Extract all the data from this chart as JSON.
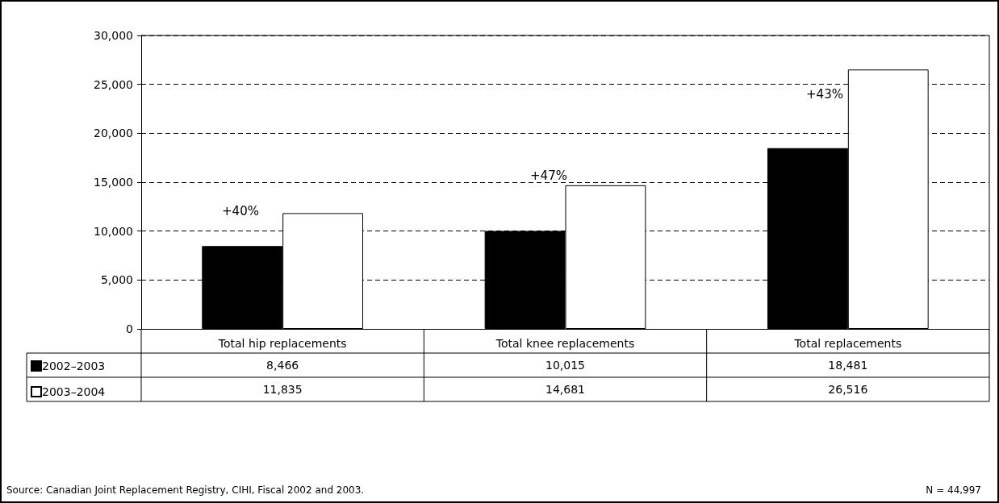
{
  "chart_data": {
    "type": "bar",
    "categories": [
      "Total hip replacements",
      "Total knee replacements",
      "Total replacements"
    ],
    "series": [
      {
        "name": "2002–2003",
        "color": "#000000",
        "values": [
          8466,
          10015,
          18481
        ],
        "value_labels": [
          "8,466",
          "10,015",
          "18,481"
        ]
      },
      {
        "name": "2003–2004",
        "color": "#ffffff",
        "values": [
          11835,
          14681,
          26516
        ],
        "value_labels": [
          "11,835",
          "14,681",
          "26,516"
        ]
      }
    ],
    "ylim": [
      0,
      30000
    ],
    "yticks": [
      0,
      {
        "value": 5000,
        "label": "5,000"
      },
      {
        "value": 10000,
        "label": "10,000"
      },
      {
        "value": 15000,
        "label": "15,000"
      },
      {
        "value": 20000,
        "label": "20,000"
      },
      {
        "value": 25000,
        "label": "25,000"
      },
      {
        "value": 30000,
        "label": "30,000"
      }
    ],
    "grid": "y",
    "legend": "bottom left",
    "annotations": [
      "+40%",
      "+47%",
      "+43%",
      "Source: Canadian Joint Replacement Registry, CIHI, Fiscal 2002 and 2003.",
      "N = 44,997"
    ]
  }
}
